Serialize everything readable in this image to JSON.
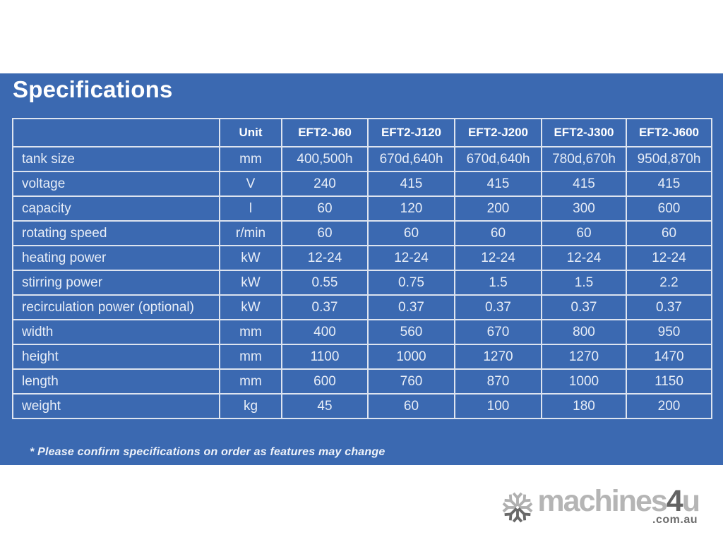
{
  "page": {
    "title": "Specifications",
    "footnote": "* Please confirm specifications on order as features may change",
    "colors": {
      "panel_blue": "#3b69b1",
      "grid_line": "#dde4f0",
      "header_text": "#ffffff",
      "body_text": "#e7edf7"
    }
  },
  "table": {
    "columns": [
      "",
      "Unit",
      "EFT2-J60",
      "EFT2-J120",
      "EFT2-J200",
      "EFT2-J300",
      "EFT2-J600"
    ],
    "rows": [
      {
        "label": "tank size",
        "unit": "mm",
        "values": [
          "400,500h",
          "670d,640h",
          "670d,640h",
          "780d,670h",
          "950d,870h"
        ]
      },
      {
        "label": "voltage",
        "unit": "V",
        "values": [
          "240",
          "415",
          "415",
          "415",
          "415"
        ]
      },
      {
        "label": "capacity",
        "unit": "l",
        "values": [
          "60",
          "120",
          "200",
          "300",
          "600"
        ]
      },
      {
        "label": "rotating speed",
        "unit": "r/min",
        "values": [
          "60",
          "60",
          "60",
          "60",
          "60"
        ]
      },
      {
        "label": "heating power",
        "unit": "kW",
        "values": [
          "12-24",
          "12-24",
          "12-24",
          "12-24",
          "12-24"
        ]
      },
      {
        "label": "stirring power",
        "unit": "kW",
        "values": [
          "0.55",
          "0.75",
          "1.5",
          "1.5",
          "2.2"
        ]
      },
      {
        "label": "recirculation power (optional)",
        "unit": "kW",
        "values": [
          "0.37",
          "0.37",
          "0.37",
          "0.37",
          "0.37"
        ]
      },
      {
        "label": "width",
        "unit": "mm",
        "values": [
          "400",
          "560",
          "670",
          "800",
          "950"
        ]
      },
      {
        "label": "height",
        "unit": "mm",
        "values": [
          "1100",
          "1000",
          "1270",
          "1270",
          "1470"
        ]
      },
      {
        "label": "length",
        "unit": "mm",
        "values": [
          "600",
          "760",
          "870",
          "1000",
          "1150"
        ]
      },
      {
        "label": "weight",
        "unit": "kg",
        "values": [
          "45",
          "60",
          "100",
          "180",
          "200"
        ]
      }
    ]
  },
  "logo": {
    "icon": "snowflake-asterisk-icon",
    "text_machines": "machines",
    "text_4": "4",
    "text_u": "u",
    "domain": ".com.au",
    "colors": {
      "light_gray": "#b5b5b5",
      "dark_gray": "#636363",
      "domain_gray": "#6e6e6e"
    }
  }
}
